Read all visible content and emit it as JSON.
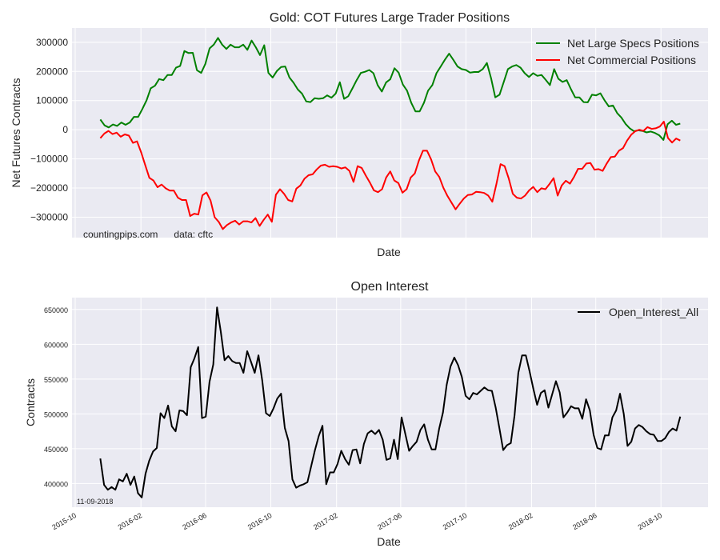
{
  "chart_data": [
    {
      "type": "line",
      "title": "Gold: COT Futures Large Trader Positions",
      "xlabel": "Date",
      "ylabel": "Net Futures Contracts",
      "annotation": "countingpips.com      data: cftc",
      "x_range": [
        "2015-09-25",
        "2018-12-28"
      ],
      "start_date": "2015-11-17",
      "end_date": "2018-11-06",
      "ylim": [
        -370000,
        349000
      ],
      "yticks": [
        300000,
        200000,
        100000,
        0,
        -100000,
        -200000,
        -300000
      ],
      "ytick_labels": [
        "300000",
        "200000",
        "100000",
        "0",
        "−100000",
        "−200000",
        "−300000"
      ],
      "grid": true,
      "legend_position": "top-right",
      "series": [
        {
          "name": "Net Large Specs Positions",
          "color": "#008000",
          "values_thousands": [
            35,
            15,
            8,
            18,
            13,
            25,
            17,
            25,
            44,
            44,
            71,
            101,
            142,
            151,
            174,
            170,
            188,
            188,
            213,
            219,
            270,
            263,
            264,
            204,
            195,
            226,
            279,
            292,
            315,
            292,
            277,
            292,
            283,
            283,
            292,
            274,
            306,
            283,
            256,
            290,
            195,
            179,
            201,
            215,
            217,
            179,
            161,
            138,
            124,
            97,
            95,
            108,
            106,
            108,
            118,
            110,
            124,
            163,
            106,
            115,
            142,
            170,
            195,
            199,
            205,
            194,
            153,
            131,
            162,
            173,
            211,
            196,
            155,
            134,
            92,
            63,
            63,
            92,
            134,
            153,
            194,
            217,
            240,
            261,
            240,
            217,
            208,
            205,
            196,
            198,
            198,
            208,
            229,
            176,
            111,
            120,
            164,
            208,
            217,
            222,
            213,
            194,
            181,
            194,
            185,
            188,
            171,
            153,
            208,
            175,
            164,
            170,
            139,
            111,
            111,
            95,
            94,
            120,
            118,
            125,
            101,
            80,
            83,
            57,
            42,
            20,
            5,
            -5,
            -2,
            -4,
            -9,
            -6,
            -11,
            -19,
            -35,
            19,
            31,
            17,
            21
          ]
        },
        {
          "name": "Net Commercial Positions",
          "color": "#ff0000",
          "values_thousands": [
            -29,
            -13,
            -4,
            -15,
            -10,
            -24,
            -16,
            -20,
            -45,
            -40,
            -78,
            -122,
            -165,
            -174,
            -197,
            -188,
            -201,
            -209,
            -209,
            -233,
            -241,
            -241,
            -296,
            -288,
            -291,
            -225,
            -215,
            -243,
            -300,
            -316,
            -341,
            -327,
            -318,
            -312,
            -325,
            -314,
            -314,
            -318,
            -303,
            -330,
            -309,
            -291,
            -316,
            -223,
            -204,
            -220,
            -241,
            -246,
            -202,
            -191,
            -168,
            -156,
            -153,
            -136,
            -123,
            -120,
            -127,
            -125,
            -127,
            -133,
            -129,
            -141,
            -179,
            -125,
            -131,
            -157,
            -181,
            -208,
            -214,
            -204,
            -164,
            -143,
            -174,
            -183,
            -216,
            -204,
            -164,
            -150,
            -106,
            -72,
            -72,
            -102,
            -143,
            -162,
            -199,
            -227,
            -250,
            -273,
            -254,
            -236,
            -224,
            -222,
            -213,
            -214,
            -217,
            -226,
            -247,
            -185,
            -118,
            -125,
            -167,
            -220,
            -233,
            -236,
            -226,
            -208,
            -196,
            -214,
            -201,
            -204,
            -186,
            -166,
            -226,
            -191,
            -175,
            -185,
            -162,
            -134,
            -134,
            -116,
            -114,
            -137,
            -135,
            -141,
            -116,
            -94,
            -92,
            -72,
            -63,
            -37,
            -17,
            -5,
            0,
            -4,
            9,
            3,
            5,
            11,
            28,
            -28,
            -44,
            -30,
            -37
          ]
        }
      ]
    },
    {
      "type": "line",
      "title": "Open Interest",
      "xlabel": "Date",
      "ylabel": "Contracts",
      "annotation": "11-09-2018",
      "x_range": [
        "2015-09-25",
        "2018-12-28"
      ],
      "start_date": "2015-11-17",
      "end_date": "2018-11-06",
      "ylim": [
        366000,
        667000
      ],
      "yticks": [
        650000,
        600000,
        550000,
        500000,
        450000,
        400000
      ],
      "ytick_labels": [
        "650000",
        "600000",
        "550000",
        "500000",
        "450000",
        "400000"
      ],
      "xticks": [
        "2015-10-01",
        "2016-02-01",
        "2016-06-01",
        "2016-10-01",
        "2017-02-01",
        "2017-06-01",
        "2017-10-01",
        "2018-02-01",
        "2018-06-01",
        "2018-10-01"
      ],
      "xtick_labels": [
        "2015-10",
        "2016-02",
        "2016-06",
        "2016-10",
        "2017-02",
        "2017-06",
        "2017-10",
        "2018-02",
        "2018-06",
        "2018-10"
      ],
      "grid": true,
      "legend_position": "top-right",
      "series": [
        {
          "name": "Open_Interest_All",
          "color": "#000000",
          "values_thousands": [
            436,
            398,
            391,
            395,
            391,
            406,
            403,
            414,
            398,
            410,
            386,
            380,
            414,
            433,
            446,
            451,
            501,
            494,
            512,
            482,
            475,
            505,
            504,
            498,
            567,
            580,
            596,
            494,
            496,
            546,
            571,
            653,
            618,
            577,
            583,
            576,
            573,
            573,
            559,
            590,
            575,
            559,
            584,
            548,
            501,
            497,
            508,
            522,
            529,
            480,
            461,
            406,
            394,
            397,
            399,
            402,
            425,
            448,
            468,
            483,
            399,
            416,
            416,
            428,
            447,
            435,
            427,
            448,
            449,
            429,
            457,
            472,
            476,
            471,
            477,
            463,
            434,
            436,
            463,
            435,
            495,
            471,
            447,
            454,
            460,
            477,
            485,
            463,
            449,
            449,
            479,
            502,
            542,
            568,
            581,
            570,
            553,
            526,
            521,
            530,
            528,
            533,
            538,
            534,
            533,
            509,
            479,
            448,
            455,
            458,
            498,
            559,
            584,
            584,
            561,
            536,
            513,
            530,
            534,
            509,
            528,
            547,
            531,
            495,
            502,
            511,
            508,
            508,
            493,
            521,
            505,
            470,
            451,
            449,
            469,
            469,
            495,
            505,
            529,
            500,
            454,
            460,
            479,
            484,
            481,
            475,
            471,
            470,
            461,
            461,
            465,
            474,
            479,
            476,
            496
          ]
        }
      ]
    }
  ]
}
